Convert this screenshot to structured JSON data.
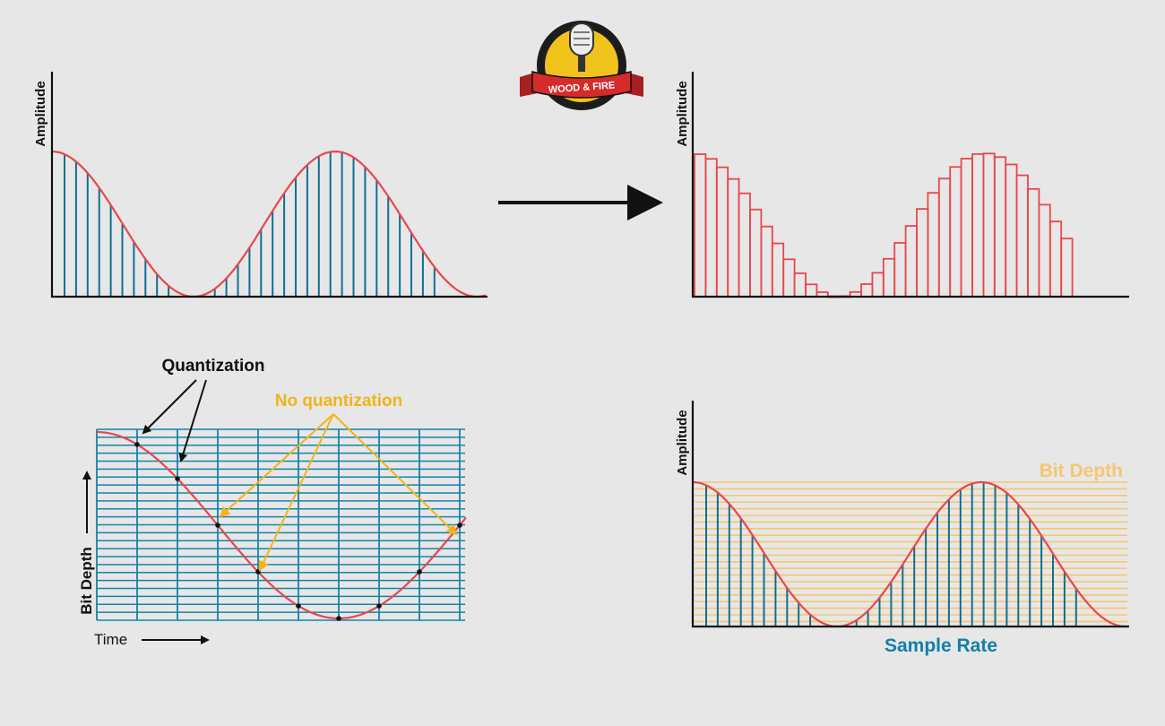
{
  "logo": {
    "text": "WOOD & FIRE",
    "colors": {
      "ring": "#1c1c1c",
      "disc": "#f1c21b",
      "ribbon": "#d62b2b",
      "ribbon_text": "#ffffff"
    }
  },
  "colors": {
    "curve": "#e8474b",
    "samples": "#0f6f96",
    "grid": "#1583a8",
    "quant_label": "#111111",
    "no_quant_label": "#f2b31b",
    "bit_depth_lines": "#f6c66f",
    "sample_rate_label": "#1380a8"
  },
  "panel_top_left": {
    "ylabel": "Amplitude"
  },
  "panel_top_right": {
    "ylabel": "Amplitude"
  },
  "panel_bottom_left": {
    "quantization_label": "Quantization",
    "no_quantization_label": "No quantization",
    "ylabel": "Bit Depth",
    "xlabel": "Time"
  },
  "panel_bottom_right": {
    "ylabel": "Amplitude",
    "bit_depth_label": "Bit Depth",
    "sample_rate_label": "Sample Rate"
  }
}
